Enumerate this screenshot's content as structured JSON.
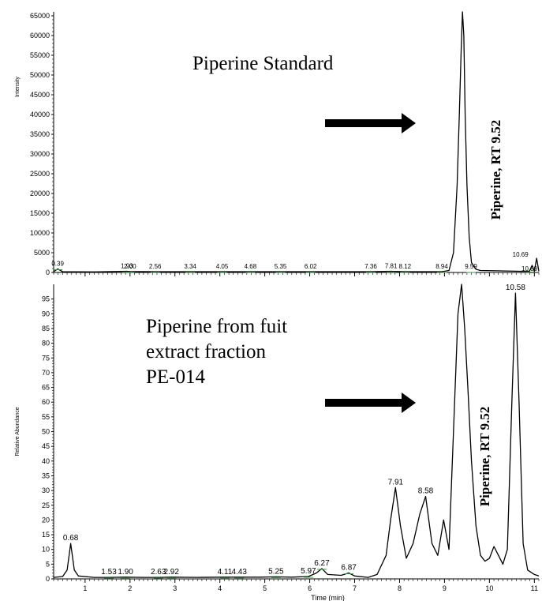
{
  "chart_data": [
    {
      "type": "line",
      "xlim": [
        0.3,
        11.1
      ],
      "ylim": [
        0,
        66000
      ],
      "yticks": [
        0,
        5000,
        10000,
        15000,
        20000,
        25000,
        30000,
        35000,
        40000,
        45000,
        50000,
        55000,
        60000,
        65000
      ],
      "ylabel": "Intensity",
      "annotation": "Piperine Standard",
      "rt_label": "Piperine, RT  9.52",
      "series": [
        {
          "x": [
            0.3,
            0.39,
            0.5,
            1.2,
            1.93,
            2.0,
            2.56,
            3.34,
            4.05,
            4.68,
            5.35,
            6.02,
            7.36,
            7.81,
            8.12,
            8.94,
            9.1,
            9.2,
            9.28,
            9.33,
            9.37,
            9.4,
            9.43,
            9.46,
            9.5,
            9.55,
            9.6,
            9.7,
            9.8,
            10.69,
            10.89,
            10.95,
            11.0,
            11.05,
            11.1
          ],
          "y": [
            200,
            900,
            200,
            150,
            300,
            250,
            200,
            200,
            200,
            200,
            200,
            200,
            200,
            300,
            200,
            200,
            500,
            5000,
            22000,
            40000,
            56000,
            66000,
            60000,
            40000,
            22000,
            9000,
            2500,
            800,
            500,
            300,
            300,
            1800,
            300,
            3600,
            300
          ]
        }
      ],
      "peak_labels": [
        {
          "x": 0.39,
          "y": 900,
          "text": "0.39"
        },
        {
          "x": 1.93,
          "y": 300,
          "text": "1.93"
        },
        {
          "x": 2.0,
          "y": 250,
          "text": "2.00"
        },
        {
          "x": 2.56,
          "y": 200,
          "text": "2.56"
        },
        {
          "x": 3.34,
          "y": 200,
          "text": "3.34"
        },
        {
          "x": 4.05,
          "y": 200,
          "text": "4.05"
        },
        {
          "x": 4.68,
          "y": 200,
          "text": "4.68"
        },
        {
          "x": 5.35,
          "y": 200,
          "text": "5.35"
        },
        {
          "x": 6.02,
          "y": 200,
          "text": "6.02"
        },
        {
          "x": 7.36,
          "y": 200,
          "text": "7.36"
        },
        {
          "x": 7.81,
          "y": 300,
          "text": "7.81"
        },
        {
          "x": 8.12,
          "y": 200,
          "text": "8.12"
        },
        {
          "x": 8.94,
          "y": 200,
          "text": "8.94"
        },
        {
          "x": 9.59,
          "y": 200,
          "text": "9.59"
        },
        {
          "x": 10.69,
          "y": 3600,
          "text": "10.69"
        },
        {
          "x": 10.89,
          "y": 300,
          "text": "10.89"
        }
      ]
    },
    {
      "type": "line",
      "xlim": [
        0.3,
        11.1
      ],
      "ylim": [
        0,
        100
      ],
      "yticks": [
        0,
        5,
        10,
        15,
        20,
        25,
        30,
        35,
        40,
        45,
        50,
        55,
        60,
        65,
        70,
        75,
        80,
        85,
        90,
        95
      ],
      "xticks": [
        1,
        2,
        3,
        4,
        5,
        6,
        7,
        8,
        9,
        10,
        11
      ],
      "xlabel": "Time (min)",
      "ylabel": "Relative Abundance",
      "annotation": [
        "Piperine from fuit",
        "extract fraction",
        "PE-014"
      ],
      "rt_label": "Piperine, RT  9.52",
      "series": [
        {
          "x": [
            0.3,
            0.5,
            0.6,
            0.68,
            0.76,
            0.85,
            1.2,
            1.53,
            1.9,
            2.3,
            2.63,
            2.92,
            3.5,
            4.11,
            4.43,
            4.9,
            5.25,
            5.6,
            5.97,
            6.15,
            6.27,
            6.4,
            6.7,
            6.87,
            7.0,
            7.3,
            7.5,
            7.7,
            7.8,
            7.91,
            8.02,
            8.15,
            8.3,
            8.45,
            8.58,
            8.72,
            8.85,
            8.98,
            9.1,
            9.2,
            9.3,
            9.38,
            9.45,
            9.52,
            9.6,
            9.7,
            9.8,
            9.9,
            10.0,
            10.1,
            10.2,
            10.3,
            10.4,
            10.5,
            10.58,
            10.66,
            10.75,
            10.85,
            11.0,
            11.1
          ],
          "y": [
            0.5,
            0.8,
            3,
            12,
            3,
            1,
            0.5,
            0.5,
            0.6,
            0.5,
            0.5,
            0.6,
            0.5,
            0.6,
            0.6,
            0.6,
            0.7,
            0.6,
            0.8,
            2,
            3.5,
            1.5,
            1.2,
            2,
            1,
            0.5,
            1.5,
            8,
            20,
            31,
            18,
            7,
            12,
            22,
            28,
            12,
            8,
            20,
            10,
            50,
            90,
            100,
            85,
            65,
            40,
            18,
            8,
            6,
            7,
            11,
            8,
            5,
            10,
            60,
            97,
            60,
            12,
            3,
            1.5,
            1
          ]
        }
      ],
      "peak_labels": [
        {
          "x": 0.68,
          "y": 12,
          "text": "0.68"
        },
        {
          "x": 1.53,
          "y": 0.5,
          "text": "1.53"
        },
        {
          "x": 1.9,
          "y": 0.6,
          "text": "1.90"
        },
        {
          "x": 2.63,
          "y": 0.5,
          "text": "2.63"
        },
        {
          "x": 2.92,
          "y": 0.6,
          "text": "2.92"
        },
        {
          "x": 4.11,
          "y": 0.6,
          "text": "4.11"
        },
        {
          "x": 4.43,
          "y": 0.6,
          "text": "4.43"
        },
        {
          "x": 5.25,
          "y": 0.7,
          "text": "5.25"
        },
        {
          "x": 5.97,
          "y": 0.8,
          "text": "5.97"
        },
        {
          "x": 6.27,
          "y": 3.5,
          "text": "6.27"
        },
        {
          "x": 6.87,
          "y": 2,
          "text": "6.87"
        },
        {
          "x": 7.91,
          "y": 31,
          "text": "7.91"
        },
        {
          "x": 8.58,
          "y": 28,
          "text": "8.58"
        },
        {
          "x": 10.58,
          "y": 97,
          "text": "10.58"
        }
      ]
    }
  ]
}
